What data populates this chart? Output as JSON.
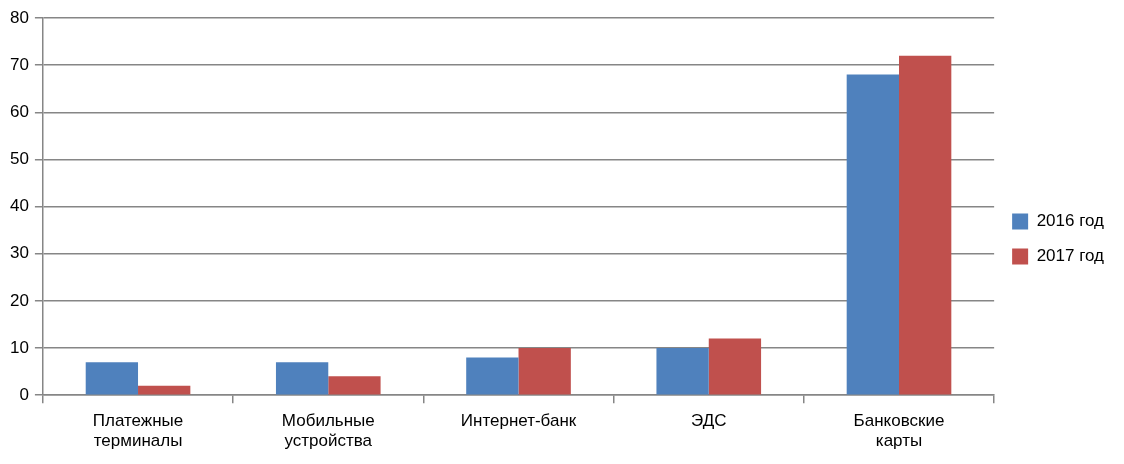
{
  "chart_data": {
    "type": "bar",
    "categories": [
      "Платежные терминалы",
      "Мобильные устройства",
      "Интернет-банк",
      "ЭДС",
      "Банковские карты"
    ],
    "series": [
      {
        "name": "2016 год",
        "color": "#4f81bd",
        "values": [
          7,
          7,
          8,
          10,
          68
        ]
      },
      {
        "name": "2017 год",
        "color": "#c0504d",
        "values": [
          2,
          4,
          10,
          12,
          72
        ]
      }
    ],
    "ylim": [
      0,
      80
    ],
    "yticks": [
      0,
      10,
      20,
      30,
      40,
      50,
      60,
      70,
      80
    ],
    "grid": "y",
    "legend": "right"
  }
}
